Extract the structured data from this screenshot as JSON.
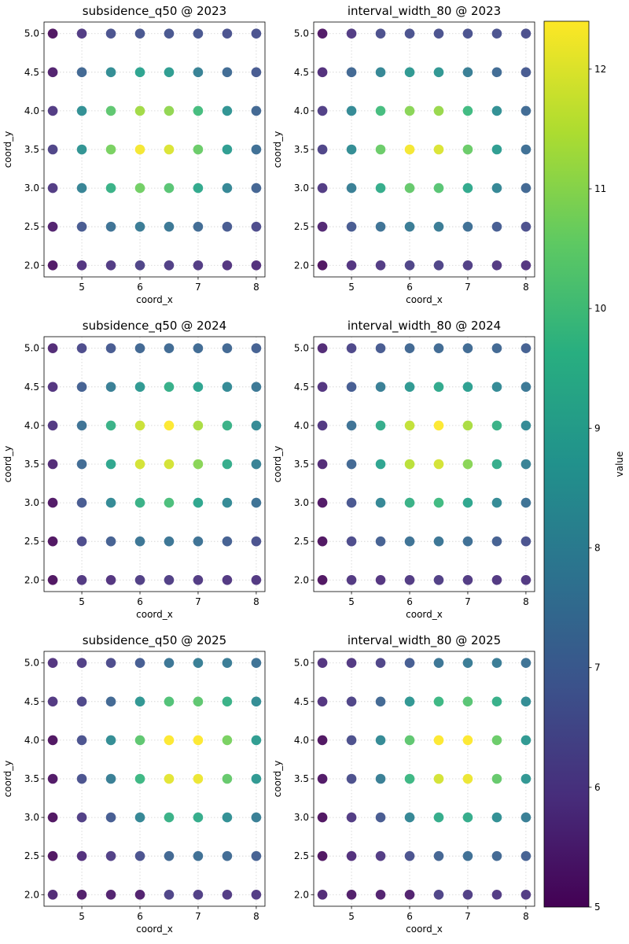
{
  "colorbar": {
    "label": "value",
    "range": [
      5,
      12.4
    ],
    "ticks": [
      5,
      6,
      7,
      8,
      9,
      10,
      11,
      12
    ],
    "colormap": "viridis"
  },
  "chart_data": [
    {
      "type": "scatter",
      "title": "subsidence_q50 @ 2023",
      "xlabel": "coord_x",
      "ylabel": "coord_y",
      "xlim": [
        4.35,
        8.15
      ],
      "ylim": [
        1.85,
        5.15
      ],
      "xticks": [
        5,
        6,
        7,
        8
      ],
      "yticks": [
        2.0,
        2.5,
        3.0,
        3.5,
        4.0,
        4.5,
        5.0
      ],
      "grid": true,
      "x": [
        4.5,
        5,
        5.5,
        6,
        6.5,
        7,
        7.5,
        8
      ],
      "y": [
        5.0,
        4.5,
        4.0,
        3.5,
        3.0,
        2.5,
        2.0
      ],
      "values": [
        [
          5.1,
          6.0,
          6.6,
          6.7,
          6.7,
          6.7,
          6.6,
          6.6
        ],
        [
          5.4,
          7.2,
          8.4,
          9.1,
          8.9,
          8.0,
          7.3,
          6.8
        ],
        [
          6.0,
          8.5,
          10.4,
          11.3,
          11.1,
          10.0,
          8.6,
          7.2
        ],
        [
          6.2,
          8.6,
          10.8,
          12.3,
          12.0,
          10.6,
          8.9,
          7.4
        ],
        [
          6.0,
          8.1,
          9.6,
          10.7,
          10.3,
          9.3,
          8.2,
          7.1
        ],
        [
          5.4,
          6.8,
          7.5,
          7.8,
          7.7,
          7.3,
          6.8,
          6.4
        ],
        [
          5.2,
          5.8,
          6.0,
          6.2,
          6.1,
          6.0,
          5.8,
          5.7
        ]
      ]
    },
    {
      "type": "scatter",
      "title": "interval_width_80 @ 2023",
      "xlabel": "coord_x",
      "ylabel": "coord_y",
      "xlim": [
        4.35,
        8.15
      ],
      "ylim": [
        1.85,
        5.15
      ],
      "xticks": [
        5,
        6,
        7,
        8
      ],
      "yticks": [
        2.0,
        2.5,
        3.0,
        3.5,
        4.0,
        4.5,
        5.0
      ],
      "grid": true,
      "x": [
        4.5,
        5,
        5.5,
        6,
        6.5,
        7,
        7.5,
        8
      ],
      "y": [
        5.0,
        4.5,
        4.0,
        3.5,
        3.0,
        2.5,
        2.0
      ],
      "values": [
        [
          5.2,
          6.0,
          6.5,
          6.6,
          6.6,
          6.6,
          6.6,
          6.5
        ],
        [
          5.7,
          7.2,
          8.2,
          8.8,
          8.7,
          7.9,
          7.3,
          6.8
        ],
        [
          6.1,
          8.3,
          10.0,
          11.0,
          11.2,
          9.9,
          8.5,
          7.3
        ],
        [
          6.2,
          8.4,
          10.6,
          12.3,
          12.0,
          10.6,
          8.9,
          7.4
        ],
        [
          6.0,
          7.9,
          9.4,
          10.5,
          10.3,
          9.3,
          8.2,
          7.2
        ],
        [
          5.5,
          6.8,
          7.5,
          7.8,
          7.8,
          7.4,
          6.9,
          6.5
        ],
        [
          5.1,
          5.8,
          6.0,
          6.2,
          6.2,
          6.1,
          5.9,
          5.8
        ]
      ]
    },
    {
      "type": "scatter",
      "title": "subsidence_q50 @ 2024",
      "xlabel": "coord_x",
      "ylabel": "coord_y",
      "xlim": [
        4.35,
        8.15
      ],
      "ylim": [
        1.85,
        5.15
      ],
      "xticks": [
        5,
        6,
        7,
        8
      ],
      "yticks": [
        2.0,
        2.5,
        3.0,
        3.5,
        4.0,
        4.5,
        5.0
      ],
      "grid": true,
      "x": [
        4.5,
        5,
        5.5,
        6,
        6.5,
        7,
        7.5,
        8
      ],
      "y": [
        5.0,
        4.5,
        4.0,
        3.5,
        3.0,
        2.5,
        2.0
      ],
      "values": [
        [
          5.6,
          6.4,
          6.8,
          7.2,
          7.3,
          7.3,
          7.2,
          7.0
        ],
        [
          5.8,
          7.0,
          7.9,
          8.8,
          9.5,
          9.1,
          8.3,
          7.7
        ],
        [
          5.9,
          7.5,
          9.6,
          11.8,
          12.4,
          11.4,
          9.6,
          8.3
        ],
        [
          5.6,
          7.3,
          9.2,
          11.9,
          11.9,
          11.0,
          9.4,
          8.0
        ],
        [
          5.2,
          6.8,
          8.3,
          9.6,
          10.1,
          9.2,
          8.3,
          7.5
        ],
        [
          5.1,
          6.4,
          7.0,
          7.6,
          7.6,
          7.5,
          7.0,
          6.6
        ],
        [
          5.1,
          5.9,
          5.8,
          6.1,
          6.1,
          6.0,
          5.9,
          5.9
        ]
      ]
    },
    {
      "type": "scatter",
      "title": "interval_width_80 @ 2024",
      "xlabel": "coord_x",
      "ylabel": "coord_y",
      "xlim": [
        4.35,
        8.15
      ],
      "ylim": [
        1.85,
        5.15
      ],
      "xticks": [
        5,
        6,
        7,
        8
      ],
      "yticks": [
        2.0,
        2.5,
        3.0,
        3.5,
        4.0,
        4.5,
        5.0
      ],
      "grid": true,
      "x": [
        4.5,
        5,
        5.5,
        6,
        6.5,
        7,
        7.5,
        8
      ],
      "y": [
        5.0,
        4.5,
        4.0,
        3.5,
        3.0,
        2.5,
        2.0
      ],
      "values": [
        [
          5.6,
          6.3,
          6.8,
          7.2,
          7.3,
          7.3,
          7.2,
          7.0
        ],
        [
          5.8,
          6.9,
          7.9,
          8.8,
          9.3,
          9.0,
          8.3,
          7.7
        ],
        [
          5.9,
          7.5,
          9.4,
          11.7,
          12.4,
          11.4,
          9.6,
          8.3
        ],
        [
          5.6,
          7.2,
          9.1,
          11.6,
          11.9,
          11.0,
          9.4,
          8.0
        ],
        [
          5.2,
          6.7,
          8.2,
          9.6,
          9.9,
          9.2,
          8.3,
          7.5
        ],
        [
          5.1,
          6.4,
          7.0,
          7.5,
          7.6,
          7.4,
          7.0,
          6.6
        ],
        [
          5.1,
          5.9,
          5.8,
          6.0,
          6.1,
          6.0,
          5.9,
          5.9
        ]
      ]
    },
    {
      "type": "scatter",
      "title": "subsidence_q50 @ 2025",
      "xlabel": "coord_x",
      "ylabel": "coord_y",
      "xlim": [
        4.35,
        8.15
      ],
      "ylim": [
        1.85,
        5.15
      ],
      "xticks": [
        5,
        6,
        7,
        8
      ],
      "yticks": [
        2.0,
        2.5,
        3.0,
        3.5,
        4.0,
        4.5,
        5.0
      ],
      "grid": true,
      "x": [
        4.5,
        5,
        5.5,
        6,
        6.5,
        7,
        7.5,
        8
      ],
      "y": [
        5.0,
        4.5,
        4.0,
        3.5,
        3.0,
        2.5,
        2.0
      ],
      "values": [
        [
          5.8,
          6.1,
          6.4,
          6.9,
          7.6,
          7.9,
          7.8,
          7.5
        ],
        [
          5.9,
          6.3,
          7.2,
          8.7,
          10.2,
          10.4,
          9.6,
          8.4
        ],
        [
          5.1,
          6.6,
          8.4,
          10.4,
          12.4,
          12.4,
          10.8,
          8.9
        ],
        [
          5.2,
          6.6,
          7.9,
          9.8,
          12.1,
          12.2,
          10.5,
          8.8
        ],
        [
          5.1,
          6.1,
          6.9,
          8.2,
          9.6,
          9.4,
          8.5,
          7.9
        ],
        [
          5.1,
          5.7,
          6.1,
          6.6,
          7.2,
          7.4,
          7.3,
          7.0
        ],
        [
          5.6,
          5.3,
          5.4,
          5.4,
          6.2,
          6.1,
          6.0,
          6.0
        ]
      ]
    },
    {
      "type": "scatter",
      "title": "interval_width_80 @ 2025",
      "xlabel": "coord_x",
      "ylabel": "coord_y",
      "xlim": [
        4.35,
        8.15
      ],
      "ylim": [
        1.85,
        5.15
      ],
      "xticks": [
        5,
        6,
        7,
        8
      ],
      "yticks": [
        2.0,
        2.5,
        3.0,
        3.5,
        4.0,
        4.5,
        5.0
      ],
      "grid": true,
      "x": [
        4.5,
        5,
        5.5,
        6,
        6.5,
        7,
        7.5,
        8
      ],
      "y": [
        5.0,
        4.5,
        4.0,
        3.5,
        3.0,
        2.5,
        2.0
      ],
      "values": [
        [
          5.8,
          5.9,
          6.2,
          6.9,
          7.6,
          7.8,
          7.8,
          7.5
        ],
        [
          5.8,
          6.2,
          7.2,
          8.7,
          9.8,
          10.3,
          9.5,
          8.4
        ],
        [
          5.1,
          6.5,
          8.3,
          10.4,
          12.4,
          12.4,
          10.6,
          8.8
        ],
        [
          5.2,
          6.5,
          7.9,
          9.8,
          11.9,
          12.2,
          10.5,
          8.7
        ],
        [
          5.1,
          6.0,
          6.8,
          8.2,
          9.4,
          9.4,
          8.5,
          7.9
        ],
        [
          5.1,
          5.7,
          6.0,
          6.6,
          7.1,
          7.4,
          7.2,
          7.0
        ],
        [
          5.6,
          5.3,
          5.4,
          5.4,
          6.2,
          6.1,
          6.0,
          6.0
        ]
      ]
    }
  ]
}
